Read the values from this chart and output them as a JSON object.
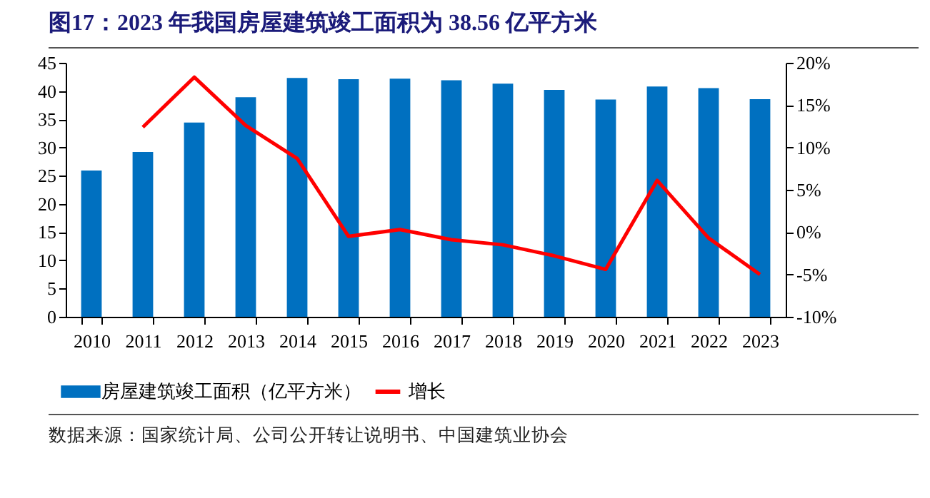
{
  "chart_data": {
    "type": "bar",
    "title": "图17：2023 年我国房屋建筑竣工面积为 38.56 亿平方米",
    "categories": [
      "2010",
      "2011",
      "2012",
      "2013",
      "2014",
      "2015",
      "2016",
      "2017",
      "2018",
      "2019",
      "2020",
      "2021",
      "2022",
      "2023"
    ],
    "series": [
      {
        "name": "房屋建筑竣工面积（亿平方米）",
        "color": "#0070c0",
        "values": [
          25.9,
          29.2,
          34.4,
          38.9,
          42.3,
          42.1,
          42.2,
          41.9,
          41.3,
          40.2,
          38.5,
          40.8,
          40.5,
          38.56
        ]
      },
      {
        "name": "增长",
        "type": "line",
        "axis": "y2",
        "color": "#ff0000",
        "values": [
          null,
          12.4,
          18.3,
          12.6,
          8.7,
          -0.5,
          0.3,
          -0.9,
          -1.5,
          -2.8,
          -4.4,
          6.1,
          -0.7,
          -5.0
        ]
      }
    ],
    "ylim": [
      0,
      45
    ],
    "yticks": [
      0,
      5,
      10,
      15,
      20,
      25,
      30,
      35,
      40,
      45
    ],
    "y2lim": [
      -10,
      20
    ],
    "y2ticks": [
      {
        "value": -10,
        "label": "-10%"
      },
      {
        "value": -5,
        "label": "-5%"
      },
      {
        "value": 0,
        "label": "0%"
      },
      {
        "value": 5,
        "label": "5%"
      },
      {
        "value": 10,
        "label": "10%"
      },
      {
        "value": 15,
        "label": "15%"
      },
      {
        "value": 20,
        "label": "20%"
      }
    ],
    "grid": false,
    "legend": "bottom",
    "annotations": [
      "数据来源：国家统计局、公司公开转让说明书、中国建筑业协会"
    ]
  }
}
